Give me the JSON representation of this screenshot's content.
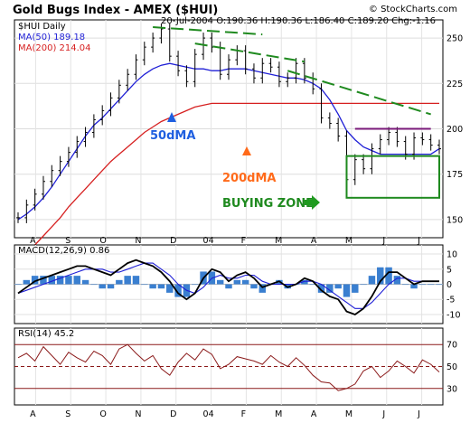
{
  "header": {
    "title": "Gold Bugs Index - AMEX ($HUI)",
    "copyright": "© StockCharts.com",
    "symbol_label": "$HUI Daily",
    "quote": "20-Jul-2004  O:190.36 H:190.36 L:186.40 C:189.20 Chg:-1.16",
    "ma50_legend": "MA(50) 189.18",
    "ma200_legend": "MA(200) 214.04",
    "macd_legend": "MACD(12,26,9) 0.86",
    "rsi_legend": "RSI(14) 45.2"
  },
  "annotations": {
    "ma50_label": "50dMA",
    "ma200_label": "200dMA",
    "buying_zone_label": "BUYING ZONE"
  },
  "colors": {
    "price": "#000000",
    "ma50": "#1f1fd6",
    "ma200": "#d62020",
    "trendline": "#1f8a1f",
    "resistance": "#7a1a7a",
    "zone": "#1f8a1f",
    "macd_hist": "#3a7fd0",
    "macd_line": "#000000",
    "macd_signal": "#1f1fd6",
    "rsi": "#8b1a1a",
    "arrow_blue": "#1f5fe0",
    "arrow_orange": "#ff6a1a",
    "arrow_green": "#1f9a1f"
  },
  "chart_data": [
    {
      "type": "line",
      "name": "price-panel",
      "x_labels": [
        "A",
        "S",
        "O",
        "N",
        "D",
        "04",
        "F",
        "M",
        "A",
        "M",
        "J",
        "J"
      ],
      "y_ticks": [
        150,
        175,
        200,
        225,
        250
      ],
      "ylim": [
        140,
        260
      ],
      "grid": true,
      "close": [
        151,
        158,
        164,
        171,
        177,
        182,
        187,
        193,
        198,
        205,
        210,
        217,
        224,
        230,
        238,
        245,
        250,
        255,
        240,
        232,
        226,
        241,
        250,
        245,
        230,
        238,
        243,
        233,
        228,
        236,
        234,
        226,
        228,
        236,
        228,
        222,
        206,
        203,
        196,
        172,
        183,
        178,
        189,
        194,
        198,
        193,
        186,
        195,
        194,
        191,
        189
      ],
      "ma50": [
        150,
        153,
        157,
        162,
        168,
        175,
        182,
        189,
        196,
        202,
        206,
        211,
        216,
        221,
        226,
        230,
        233,
        235,
        236,
        235,
        234,
        233,
        233,
        232,
        232,
        233,
        233,
        233,
        232,
        231,
        230,
        229,
        228,
        228,
        227,
        225,
        222,
        216,
        208,
        199,
        194,
        190,
        188,
        186,
        186,
        186,
        186,
        186,
        186,
        186,
        189
      ],
      "ma200": [
        126,
        131,
        136,
        141,
        146,
        151,
        157,
        162,
        167,
        172,
        177,
        182,
        186,
        190,
        194,
        198,
        201,
        204,
        206,
        208,
        210,
        212,
        213,
        214,
        214,
        214,
        214,
        214,
        214,
        214,
        214,
        214,
        214,
        214,
        214,
        214,
        214,
        214,
        214,
        214,
        214,
        214,
        214,
        214,
        214,
        214,
        214,
        214,
        214,
        214,
        214
      ],
      "trendlines": [
        {
          "from": [
            16,
            256
          ],
          "to": [
            29,
            252
          ]
        },
        {
          "from": [
            21,
            247
          ],
          "to": [
            34,
            237
          ]
        },
        {
          "from": [
            32,
            232
          ],
          "to": [
            49,
            208
          ]
        }
      ],
      "resistance": {
        "from": [
          40,
          200
        ],
        "to": [
          49,
          200
        ]
      },
      "buying_zone": {
        "x": [
          39,
          50
        ],
        "y": [
          162,
          185
        ]
      }
    },
    {
      "type": "line",
      "name": "macd-panel",
      "y_ticks": [
        10,
        5,
        0,
        -5,
        -10
      ],
      "ylim": [
        -13,
        13
      ],
      "macd": [
        -3,
        -1,
        1,
        2,
        3,
        4,
        5,
        6,
        6,
        5,
        4,
        3,
        5,
        7,
        8,
        7,
        6,
        4,
        1,
        -3,
        -5,
        -3,
        2,
        5,
        4,
        1,
        3,
        4,
        2,
        -1,
        0,
        1,
        -1,
        0,
        2,
        1,
        -2,
        -4,
        -5,
        -9,
        -10,
        -8,
        -4,
        1,
        4,
        4,
        2,
        0,
        1,
        1,
        1
      ],
      "signal": [
        -3,
        -2,
        -1,
        0,
        1,
        2,
        3,
        4,
        5,
        5,
        5,
        4,
        4,
        5,
        6,
        7,
        7,
        5,
        3,
        0,
        -2,
        -3,
        -1,
        2,
        3,
        2,
        2,
        3,
        3,
        1,
        0,
        0,
        0,
        0,
        1,
        1,
        0,
        -2,
        -4,
        -6,
        -8,
        -8,
        -6,
        -3,
        0,
        2,
        2,
        1,
        1,
        1,
        1
      ]
    },
    {
      "type": "line",
      "name": "rsi-panel",
      "y_ticks": [
        70,
        50,
        30
      ],
      "ylim": [
        15,
        85
      ],
      "rsi": [
        58,
        62,
        55,
        68,
        60,
        52,
        63,
        58,
        54,
        64,
        60,
        52,
        66,
        70,
        62,
        55,
        60,
        48,
        42,
        54,
        62,
        56,
        66,
        61,
        48,
        52,
        59,
        57,
        55,
        52,
        60,
        54,
        50,
        58,
        51,
        42,
        36,
        35,
        28,
        30,
        34,
        46,
        50,
        40,
        46,
        55,
        50,
        44,
        56,
        52,
        45
      ]
    }
  ]
}
